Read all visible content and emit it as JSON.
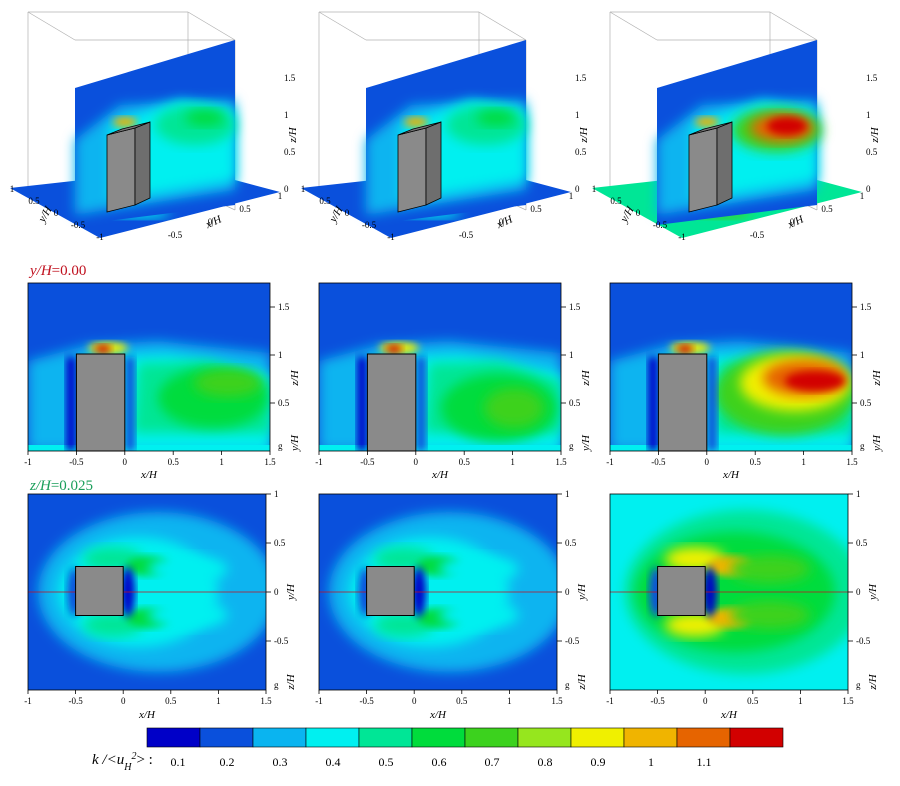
{
  "rows": {
    "row2_label": {
      "var": "y/H",
      "value": "=0.00",
      "color": "#c0111f"
    },
    "row3_label": {
      "var": "z/H",
      "value": "=0.025",
      "color": "#1a9e5a"
    }
  },
  "panel_3d": {
    "x_label": "x/H",
    "y_label": "y/H",
    "z_label": "z/H",
    "x_ticks": [
      "-0.5",
      "0",
      "0.5",
      "1"
    ],
    "y_ticks": [
      "-1",
      "-0.5",
      "0",
      "0.5",
      "1"
    ],
    "z_ticks": [
      "0",
      "0.5",
      "1",
      "1.5"
    ]
  },
  "panel_side": {
    "x_label": "x/H",
    "z_label": "z/H",
    "y_label": "y/H",
    "x_ticks": [
      "-1",
      "-0.5",
      "0",
      "0.5",
      "1",
      "1.5"
    ],
    "z_ticks": [
      "0.5",
      "1",
      "1.5"
    ],
    "small_tick": "g",
    "xlim": [
      -1,
      1.5
    ],
    "zlim": [
      0,
      1.75
    ]
  },
  "panel_top": {
    "x_label": "x/H",
    "y_label": "y/H",
    "z_label": "z/H",
    "x_ticks": [
      "-1",
      "-0.5",
      "0",
      "0.5",
      "1",
      "1.5"
    ],
    "y_ticks": [
      "-0.5",
      "0",
      "0.5",
      "1"
    ],
    "small_tick": "g",
    "xlim": [
      -1,
      1.5
    ],
    "ylim": [
      -1,
      1
    ]
  },
  "colorbar": {
    "label_main": "k /<u",
    "label_sub": "H",
    "label_sup": "2",
    "label_end": "> :",
    "ticks": [
      "0.1",
      "0.2",
      "0.3",
      "0.4",
      "0.5",
      "0.6",
      "0.7",
      "0.8",
      "0.9",
      "1",
      "1.1"
    ],
    "colors": [
      "#0000c8",
      "#0a50dc",
      "#0ab4f0",
      "#00f0f0",
      "#00e696",
      "#00dc3c",
      "#3cd21e",
      "#96e61e",
      "#f0f000",
      "#f0b400",
      "#e66400",
      "#d20000"
    ]
  },
  "chart_data": {
    "type": "heatmap",
    "description_cases": 3,
    "xlabel": "x/H",
    "ylabel": "z/H",
    "value_label": "k /<u_H^2>",
    "levels": [
      0.1,
      0.2,
      0.3,
      0.4,
      0.5,
      0.6,
      0.7,
      0.8,
      0.9,
      1.0,
      1.1
    ],
    "xlim": [
      -1,
      1.5
    ],
    "zlim": [
      0,
      1.75
    ],
    "ylim": [
      -1,
      1
    ]
  }
}
